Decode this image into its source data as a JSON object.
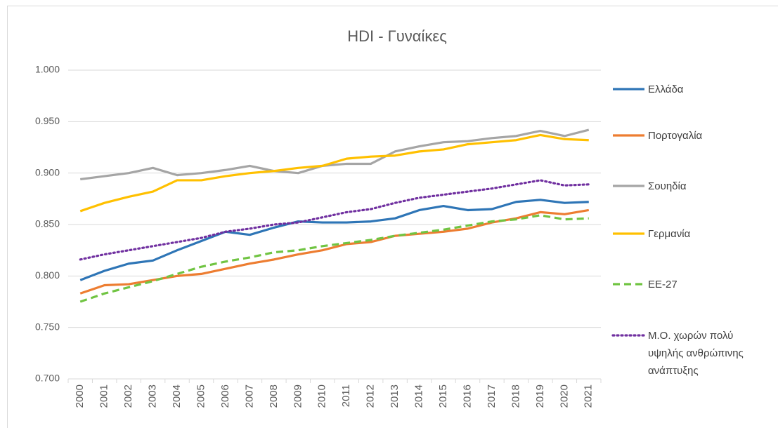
{
  "chart_data": {
    "type": "line",
    "title": "HDI - Γυναίκες",
    "categories": [
      "2000",
      "2001",
      "2002",
      "2003",
      "2004",
      "2005",
      "2006",
      "2007",
      "2008",
      "2009",
      "2010",
      "2011",
      "2012",
      "2013",
      "2014",
      "2015",
      "2016",
      "2017",
      "2018",
      "2019",
      "2020",
      "2021"
    ],
    "ylim": [
      0.7,
      1.0
    ],
    "yticks": [
      {
        "value": 0.7,
        "label": "0.700"
      },
      {
        "value": 0.75,
        "label": "0.750"
      },
      {
        "value": 0.8,
        "label": "0.800"
      },
      {
        "value": 0.85,
        "label": "0.850"
      },
      {
        "value": 0.9,
        "label": "0.900"
      },
      {
        "value": 0.95,
        "label": "0.950"
      },
      {
        "value": 1.0,
        "label": "1.000"
      }
    ],
    "grid": true,
    "legend": "right",
    "series": [
      {
        "name": "Ελλάδα",
        "color": "#2e75b6",
        "dash": "solid",
        "values": [
          0.796,
          0.805,
          0.812,
          0.815,
          0.825,
          0.834,
          0.843,
          0.84,
          0.847,
          0.853,
          0.852,
          0.852,
          0.853,
          0.856,
          0.864,
          0.868,
          0.864,
          0.865,
          0.872,
          0.874,
          0.871,
          0.872
        ]
      },
      {
        "name": "Πορτογαλία",
        "color": "#ed7d31",
        "dash": "solid",
        "values": [
          0.783,
          0.791,
          0.792,
          0.796,
          0.8,
          0.802,
          0.807,
          0.812,
          0.816,
          0.821,
          0.825,
          0.831,
          0.833,
          0.839,
          0.841,
          0.843,
          0.846,
          0.852,
          0.856,
          0.862,
          0.86,
          0.864
        ]
      },
      {
        "name": "Σουηδία",
        "color": "#a5a5a5",
        "dash": "solid",
        "values": [
          0.894,
          0.897,
          0.9,
          0.905,
          0.898,
          0.9,
          0.903,
          0.907,
          0.902,
          0.9,
          0.907,
          0.909,
          0.909,
          0.921,
          0.926,
          0.93,
          0.931,
          0.934,
          0.936,
          0.941,
          0.936,
          0.942
        ]
      },
      {
        "name": "Γερμανία",
        "color": "#ffc000",
        "dash": "solid",
        "values": [
          0.863,
          0.871,
          0.877,
          0.882,
          0.893,
          0.893,
          0.897,
          0.9,
          0.902,
          0.905,
          0.907,
          0.914,
          0.916,
          0.917,
          0.921,
          0.923,
          0.928,
          0.93,
          0.932,
          0.937,
          0.933,
          0.932
        ]
      },
      {
        "name": "ΕΕ-27",
        "color": "#70c442",
        "dash": "dash",
        "values": [
          0.775,
          0.783,
          0.789,
          0.795,
          0.802,
          0.809,
          0.814,
          0.818,
          0.823,
          0.825,
          0.829,
          0.832,
          0.835,
          0.839,
          0.842,
          0.845,
          0.849,
          0.853,
          0.855,
          0.859,
          0.855,
          0.856
        ]
      },
      {
        "name": "Μ.Ο. χωρών πολύ υψηλής ανθρώπινης ανάπτυξης",
        "color": "#7030a0",
        "dash": "dot",
        "values": [
          0.816,
          0.821,
          0.825,
          0.829,
          0.833,
          0.837,
          0.843,
          0.846,
          0.85,
          0.852,
          0.857,
          0.862,
          0.865,
          0.871,
          0.876,
          0.879,
          0.882,
          0.885,
          0.889,
          0.893,
          0.888,
          0.889
        ]
      }
    ]
  }
}
